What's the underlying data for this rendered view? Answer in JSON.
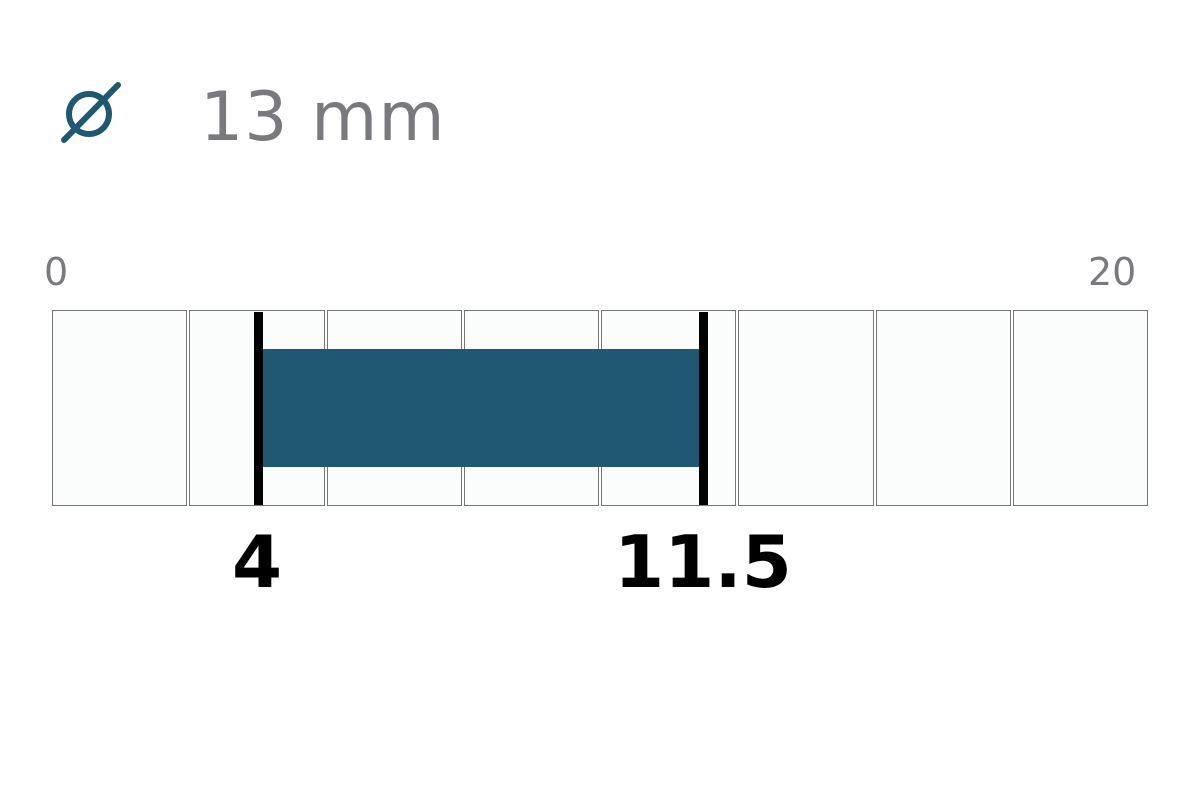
{
  "header": {
    "icon": "diameter-icon",
    "diameter": "13 mm"
  },
  "scale": {
    "min_label": "0",
    "max_label": "20",
    "segments": 8
  },
  "range": {
    "low_label": "4",
    "high_label": "11.5"
  },
  "colors": {
    "accent": "#1f5870",
    "marker": "#000000",
    "text_gray": "#7a7a7e",
    "cell_border": "#777777"
  }
}
